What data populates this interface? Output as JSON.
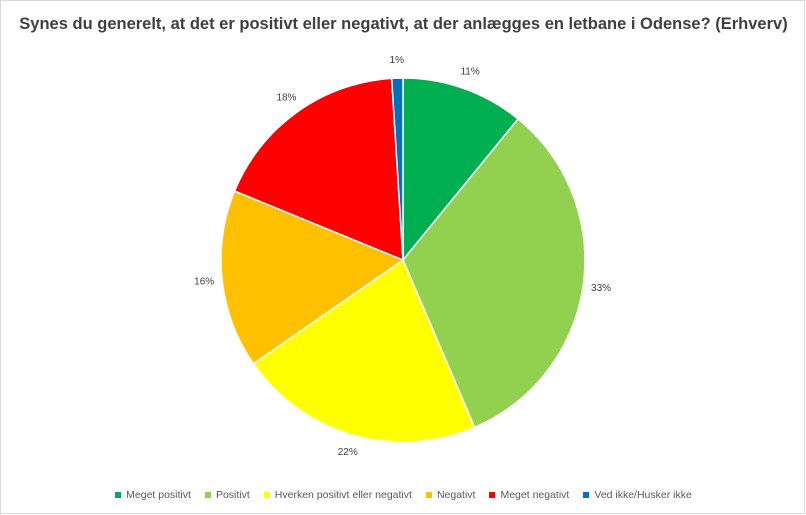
{
  "chart_data": {
    "type": "pie",
    "title": "Synes du generelt, at det er positivt eller negativt, at der anlægges en letbane i Odense? (Erhverv)",
    "slices": [
      {
        "label": "Meget positivt",
        "value": 11,
        "display": "11%",
        "color": "#00B050"
      },
      {
        "label": "Positivt",
        "value": 33,
        "display": "33%",
        "color": "#92D050"
      },
      {
        "label": "Hverken positivt eller negativt",
        "value": 22,
        "display": "22%",
        "color": "#FFFF00"
      },
      {
        "label": "Negativt",
        "value": 16,
        "display": "16%",
        "color": "#FFC000"
      },
      {
        "label": "Meget negativt",
        "value": 18,
        "display": "18%",
        "color": "#FF0000"
      },
      {
        "label": "Ved ikke/Husker ikke",
        "value": 1,
        "display": "1%",
        "color": "#0070C0"
      }
    ],
    "legend_position": "bottom",
    "slice_border_color": "#FFFFFF"
  }
}
